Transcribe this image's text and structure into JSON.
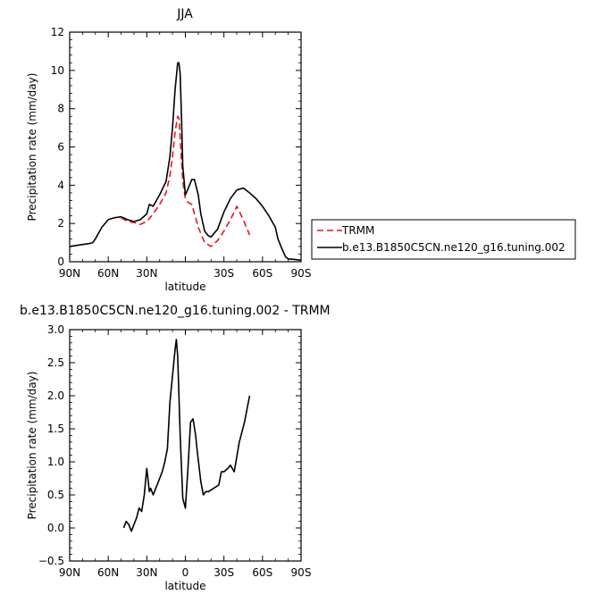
{
  "chart_data": [
    {
      "type": "line",
      "title": "JJA",
      "xlabel": "latitude",
      "ylabel": "Precipitation rate  (mm/day)",
      "xlim": [
        90,
        -90
      ],
      "ylim": [
        0,
        12
      ],
      "x_ticks": [
        90,
        60,
        30,
        0,
        -30,
        -60,
        -90
      ],
      "x_tick_labels": [
        "90N",
        "60N",
        "30N",
        "",
        "30S",
        "60S",
        "90S"
      ],
      "y_ticks": [
        0,
        2,
        4,
        6,
        8,
        10,
        12
      ],
      "y_tick_labels": [
        "0",
        "2",
        "4",
        "6",
        "8",
        "10",
        "12"
      ],
      "legend_position": "right",
      "grid": false,
      "series": [
        {
          "name": "TRMM",
          "color": "#e8141e",
          "dash": "dashed",
          "x": [
            50,
            45,
            40,
            35,
            30,
            25,
            20,
            15,
            12,
            10,
            8,
            6,
            5,
            4,
            2,
            0,
            -2,
            -5,
            -8,
            -10,
            -15,
            -20,
            -25,
            -30,
            -35,
            -38,
            -40,
            -45,
            -50
          ],
          "y": [
            2.3,
            2.1,
            2.05,
            1.95,
            2.1,
            2.5,
            3.0,
            3.6,
            4.5,
            5.5,
            6.8,
            7.6,
            7.5,
            6.5,
            4.2,
            3.3,
            3.1,
            3.0,
            2.3,
            1.8,
            1.0,
            0.8,
            1.1,
            1.6,
            2.2,
            2.6,
            2.9,
            2.2,
            1.4
          ]
        },
        {
          "name": "b.e13.B1850C5CN.ne120_g16.tuning.002",
          "color": "#000000",
          "dash": "solid",
          "x": [
            90,
            85,
            80,
            75,
            72,
            70,
            65,
            60,
            55,
            50,
            45,
            40,
            35,
            30,
            28,
            25,
            20,
            15,
            12,
            10,
            8,
            6,
            5,
            4,
            3,
            2,
            0,
            -2,
            -5,
            -7,
            -10,
            -12,
            -15,
            -18,
            -20,
            -25,
            -30,
            -35,
            -40,
            -45,
            -50,
            -55,
            -60,
            -65,
            -70,
            -72,
            -75,
            -78,
            -80,
            -85,
            -90
          ],
          "y": [
            0.8,
            0.85,
            0.9,
            0.95,
            1.0,
            1.2,
            1.8,
            2.2,
            2.3,
            2.35,
            2.2,
            2.1,
            2.2,
            2.5,
            3.0,
            2.9,
            3.5,
            4.2,
            5.5,
            7.0,
            9.0,
            10.4,
            10.4,
            9.8,
            7.5,
            5.0,
            3.5,
            3.8,
            4.3,
            4.3,
            3.5,
            2.5,
            1.6,
            1.35,
            1.3,
            1.7,
            2.6,
            3.3,
            3.75,
            3.85,
            3.6,
            3.3,
            2.9,
            2.4,
            1.8,
            1.2,
            0.7,
            0.25,
            0.15,
            0.12,
            0.08
          ]
        }
      ]
    },
    {
      "type": "line",
      "title": "b.e13.B1850C5CN.ne120_g16.tuning.002 - TRMM",
      "xlabel": "latitude",
      "ylabel": "Precipitation rate  (mm/day)",
      "xlim": [
        90,
        -90
      ],
      "ylim": [
        -0.5,
        3.0
      ],
      "x_ticks": [
        90,
        60,
        30,
        0,
        -30,
        -60,
        -90
      ],
      "x_tick_labels": [
        "90N",
        "60N",
        "30N",
        "0",
        "30S",
        "60S",
        "90S"
      ],
      "y_ticks": [
        -0.5,
        0.0,
        0.5,
        1.0,
        1.5,
        2.0,
        2.5,
        3.0
      ],
      "y_tick_labels": [
        "−0.5",
        "0.0",
        "0.5",
        "1.0",
        "1.5",
        "2.0",
        "2.5",
        "3.0"
      ],
      "grid": false,
      "series": [
        {
          "color": "#000000",
          "dash": "solid",
          "x": [
            48,
            46,
            44,
            42,
            40,
            38,
            36,
            34,
            32,
            30,
            28,
            27,
            25,
            23,
            21,
            18,
            16,
            14,
            12,
            10,
            8,
            7,
            6,
            5,
            4,
            2,
            0,
            -2,
            -4,
            -6,
            -8,
            -9,
            -12,
            -14,
            -16,
            -18,
            -22,
            -26,
            -28,
            -30,
            -33,
            -35,
            -38,
            -42,
            -46,
            -50
          ],
          "y": [
            0.0,
            0.1,
            0.05,
            -0.05,
            0.05,
            0.15,
            0.3,
            0.25,
            0.5,
            0.9,
            0.55,
            0.6,
            0.5,
            0.6,
            0.7,
            0.85,
            1.0,
            1.2,
            1.9,
            2.3,
            2.7,
            2.85,
            2.6,
            2.0,
            1.4,
            0.45,
            0.3,
            0.9,
            1.6,
            1.65,
            1.4,
            1.2,
            0.7,
            0.5,
            0.55,
            0.55,
            0.6,
            0.65,
            0.85,
            0.85,
            0.9,
            0.95,
            0.85,
            1.3,
            1.6,
            2.0
          ]
        }
      ]
    }
  ]
}
